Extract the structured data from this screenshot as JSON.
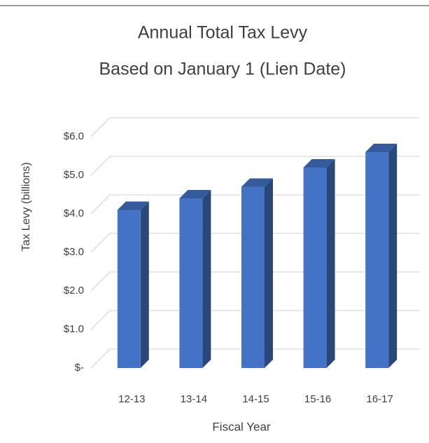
{
  "chart_data": {
    "type": "bar3d",
    "title": "Annual Total Tax Levy",
    "subtitle": "Based on January 1 (Lien Date)",
    "y_label": "Tax Levy (billions)",
    "x_label": "Fiscal Year",
    "categories": [
      "12-13",
      "13-14",
      "14-15",
      "15-16",
      "16-17"
    ],
    "values": [
      4.1,
      4.4,
      4.7,
      5.2,
      5.6
    ],
    "color": "#4472c4",
    "ylim": [
      0,
      6
    ],
    "yticks": [
      {
        "value": 0,
        "label": "$-"
      },
      {
        "value": 1,
        "label": "$1.0"
      },
      {
        "value": 2,
        "label": "$2.0"
      },
      {
        "value": 3,
        "label": "$3.0"
      },
      {
        "value": 4,
        "label": "$4.0"
      },
      {
        "value": 5,
        "label": "$5.0"
      },
      {
        "value": 6,
        "label": "$6.0"
      }
    ],
    "grid": true
  }
}
